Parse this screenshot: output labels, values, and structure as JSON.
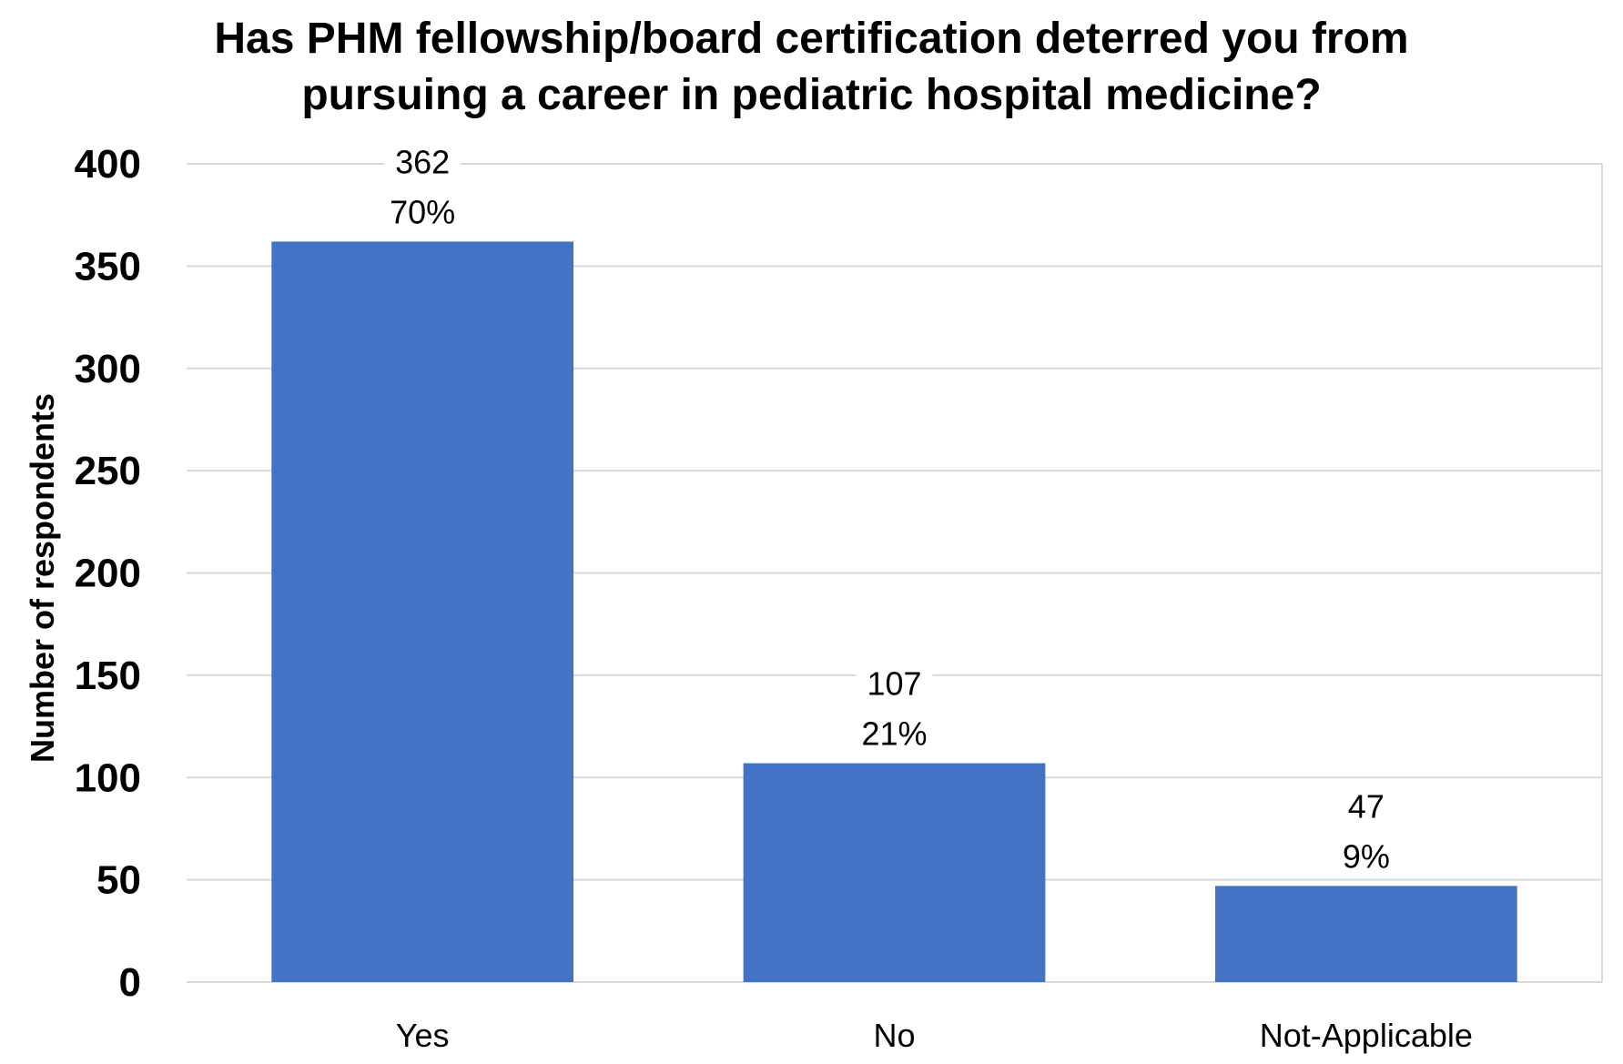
{
  "chart_data": {
    "type": "bar",
    "title_lines": [
      "Has PHM fellowship/board certification deterred you from",
      "pursuing a career in pediatric hospital medicine?"
    ],
    "xlabel": "",
    "ylabel": "Number of respondents",
    "categories": [
      "Yes",
      "No",
      "Not-Applicable"
    ],
    "values": [
      362,
      107,
      47
    ],
    "percent_labels": [
      "70%",
      "21%",
      "9%"
    ],
    "value_labels": [
      "362",
      "107",
      "47"
    ],
    "ylim": [
      0,
      400
    ],
    "yticks": [
      0,
      50,
      100,
      150,
      200,
      250,
      300,
      350,
      400
    ],
    "ytick_labels": [
      "0",
      "50",
      "100",
      "150",
      "200",
      "250",
      "300",
      "350",
      "400"
    ],
    "grid": true,
    "legend": "none",
    "bar_color": "#4472C4"
  }
}
